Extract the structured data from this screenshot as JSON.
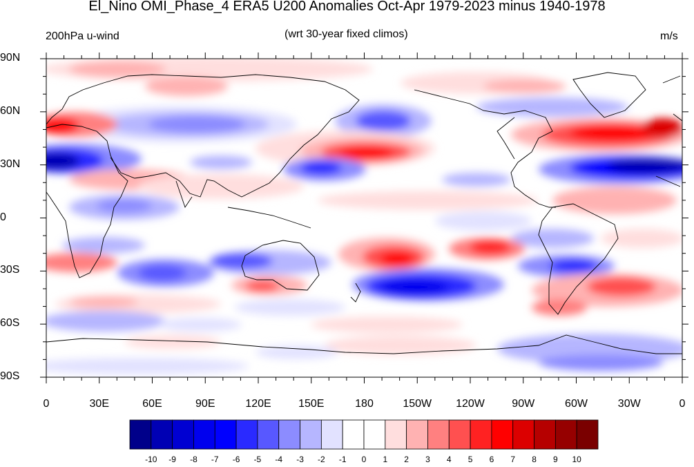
{
  "title": "El_Nino OMI_Phase_4 ERA5 U200 Anomalies Oct-Apr 1979-2023 minus 1940-1978",
  "left_subtitle": "200hPa u-wind",
  "center_subtitle": "(wrt 30-year fixed climos)",
  "right_subtitle": "m/s",
  "lat_ticks": [
    "90N",
    "60N",
    "30N",
    "0",
    "30S",
    "60S",
    "90S"
  ],
  "lon_ticks": [
    "0",
    "30E",
    "60E",
    "90E",
    "120E",
    "150E",
    "180",
    "150W",
    "120W",
    "90W",
    "60W",
    "30W",
    "0"
  ],
  "colorbar": {
    "labels": [
      "-10",
      "-9",
      "-8",
      "-7",
      "-6",
      "-5",
      "-4",
      "-3",
      "-2",
      "-1",
      "0",
      "1",
      "2",
      "3",
      "4",
      "5",
      "6",
      "7",
      "8",
      "9",
      "10"
    ],
    "colors": [
      "#00008a",
      "#0000b4",
      "#0000d2",
      "#0000ee",
      "#0000ff",
      "#2a2aff",
      "#5858ff",
      "#8c8cff",
      "#b6b6ff",
      "#e2e2ff",
      "#ffffff",
      "#ffffff",
      "#ffdede",
      "#ffb2b2",
      "#ff8080",
      "#ff5050",
      "#ff2222",
      "#ff0000",
      "#dc0000",
      "#b60000",
      "#960000",
      "#7a0000"
    ]
  },
  "anomaly_features": [
    {
      "lon": 10,
      "lat": 33,
      "value": -10
    },
    {
      "lon": 10,
      "lat": 50,
      "value": 6
    },
    {
      "lon": 355,
      "lat": 50,
      "value": 8
    },
    {
      "lon": 340,
      "lat": 46,
      "value": 7
    },
    {
      "lon": 340,
      "lat": 30,
      "value": -8
    },
    {
      "lon": 195,
      "lat": 36,
      "value": 6
    },
    {
      "lon": 205,
      "lat": 55,
      "value": -5
    },
    {
      "lon": 90,
      "lat": 52,
      "value": -5
    },
    {
      "lon": 225,
      "lat": -45,
      "value": -6
    },
    {
      "lon": 220,
      "lat": -22,
      "value": 6
    },
    {
      "lon": 255,
      "lat": -17,
      "value": 5
    },
    {
      "lon": 325,
      "lat": -38,
      "value": 5
    },
    {
      "lon": 110,
      "lat": -26,
      "value": -4
    },
    {
      "lon": 60,
      "lat": -30,
      "value": -4
    },
    {
      "lon": 270,
      "lat": -55,
      "value": 4
    }
  ]
}
